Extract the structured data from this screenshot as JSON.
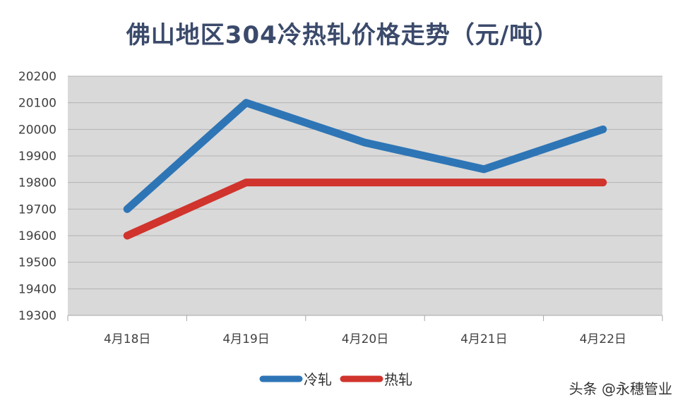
{
  "chart_data": {
    "type": "line",
    "title": "佛山地区304冷热轧价格走势（元/吨）",
    "categories": [
      "4月18日",
      "4月19日",
      "4月20日",
      "4月21日",
      "4月22日"
    ],
    "series": [
      {
        "name": "冷轧",
        "color": "#2e75b6",
        "values": [
          19700,
          20100,
          19950,
          19850,
          20000
        ]
      },
      {
        "name": "热轧",
        "color": "#d0342c",
        "values": [
          19600,
          19800,
          19800,
          19800,
          19800
        ]
      }
    ],
    "ylim": [
      19300,
      20200
    ],
    "yticks": [
      20200,
      20100,
      20000,
      19900,
      19800,
      19700,
      19600,
      19500,
      19400,
      19300
    ],
    "grid": true,
    "plot_background": "#d9d9d9",
    "legend_position": "bottom"
  },
  "watermark": "头条 @永穗管业"
}
